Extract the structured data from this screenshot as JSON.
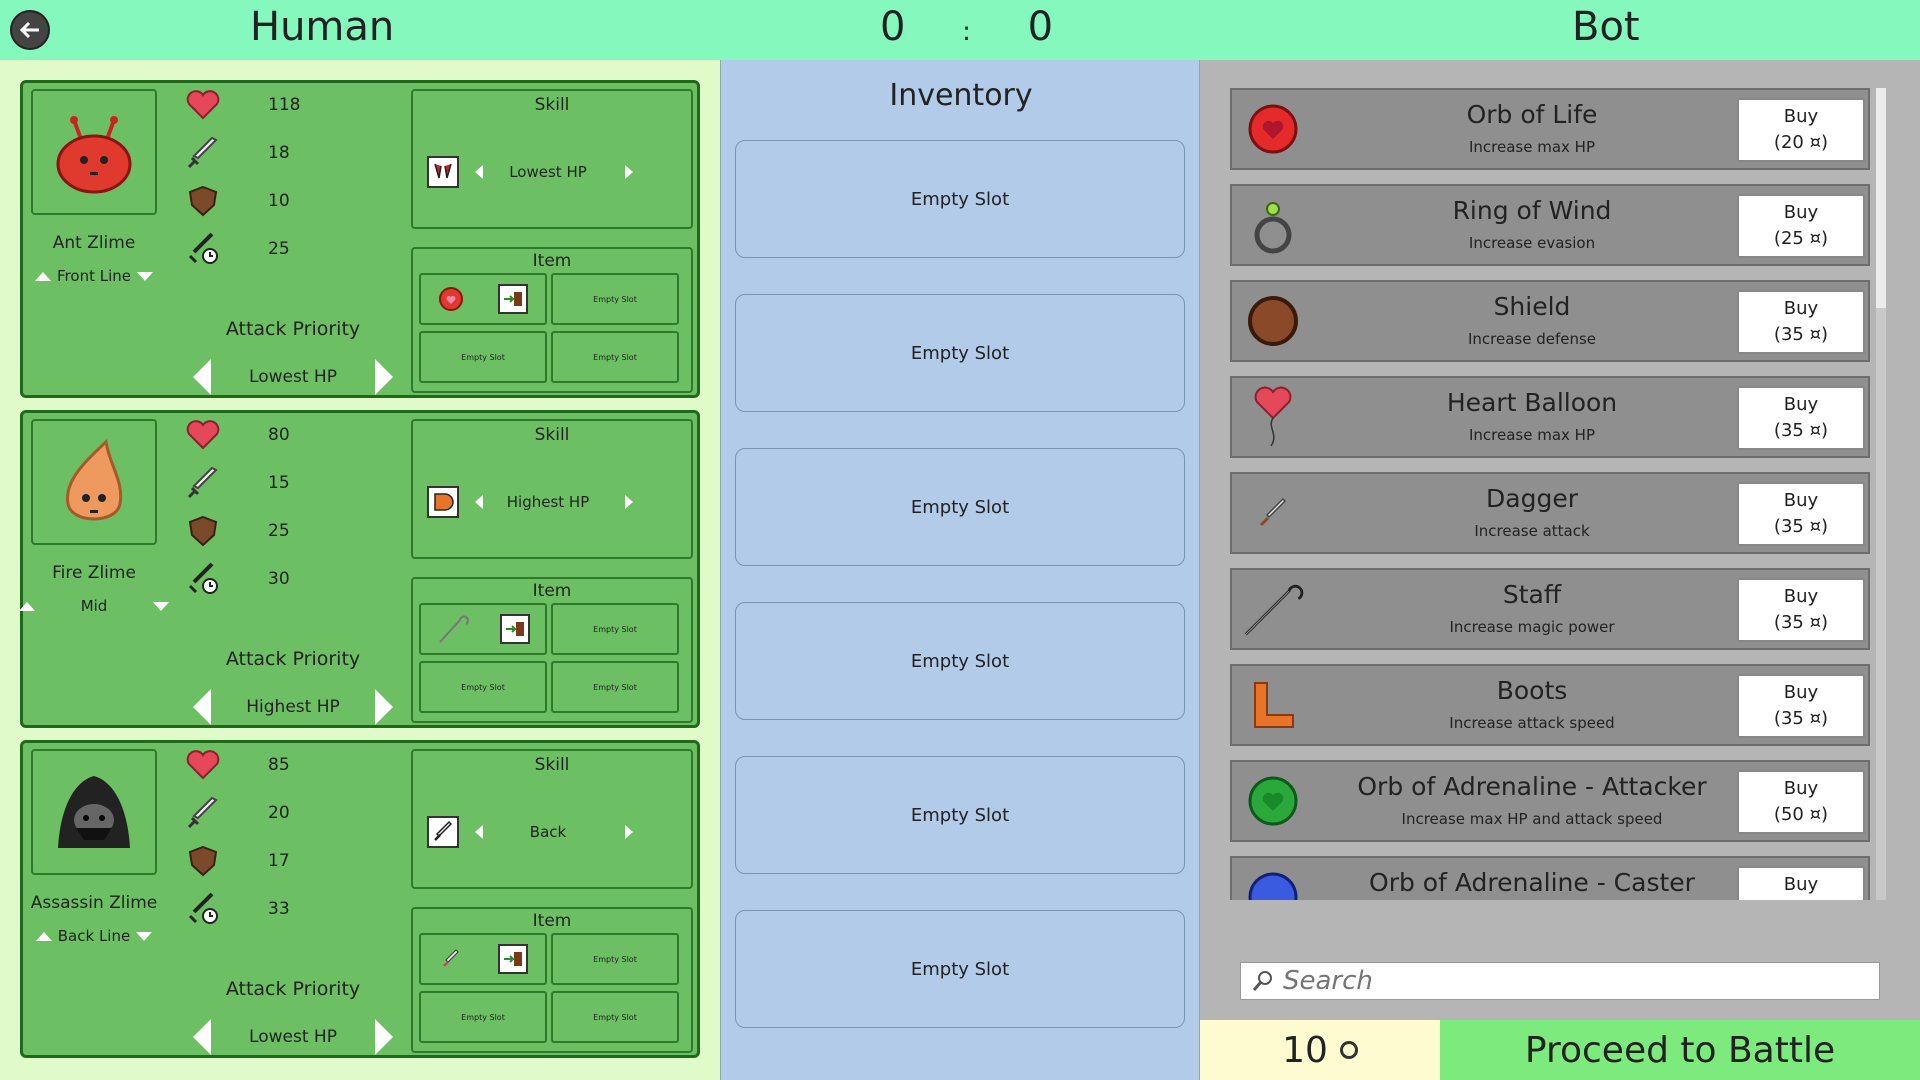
{
  "header": {
    "human_label": "Human",
    "score_left": "0",
    "score_sep": ":",
    "score_right": "0",
    "bot_label": "Bot"
  },
  "labels": {
    "skill": "Skill",
    "item": "Item",
    "attack_priority": "Attack Priority",
    "empty_slot_small": "Empty Slot"
  },
  "units": [
    {
      "name": "Ant Zlime",
      "line": "Front Line",
      "hp": "118",
      "attack": "18",
      "defense": "10",
      "speed": "25",
      "skill": "Lowest HP",
      "priority": "Lowest HP"
    },
    {
      "name": "Fire Zlime",
      "line": "Mid",
      "hp": "80",
      "attack": "15",
      "defense": "25",
      "speed": "30",
      "skill": "Highest HP",
      "priority": "Highest HP"
    },
    {
      "name": "Assassin Zlime",
      "line": "Back Line",
      "hp": "85",
      "attack": "20",
      "defense": "17",
      "speed": "33",
      "skill": "Back",
      "priority": "Lowest HP"
    }
  ],
  "inventory": {
    "title": "Inventory",
    "slots": [
      "Empty Slot",
      "Empty Slot",
      "Empty Slot",
      "Empty Slot",
      "Empty Slot",
      "Empty Slot"
    ]
  },
  "shop": {
    "items": [
      {
        "name": "Orb of Life",
        "desc": "Increase max HP",
        "buy": "Buy",
        "price": "(20",
        "icon": "red-orb-icon"
      },
      {
        "name": "Ring of Wind",
        "desc": "Increase evasion",
        "buy": "Buy",
        "price": "(25",
        "icon": "ring-icon"
      },
      {
        "name": "Shield",
        "desc": "Increase defense",
        "buy": "Buy",
        "price": "(35",
        "icon": "shield-item-icon"
      },
      {
        "name": "Heart Balloon",
        "desc": "Increase max HP",
        "buy": "Buy",
        "price": "(35",
        "icon": "heart-balloon-icon"
      },
      {
        "name": "Dagger",
        "desc": "Increase attack",
        "buy": "Buy",
        "price": "(35",
        "icon": "dagger-icon"
      },
      {
        "name": "Staff",
        "desc": "Increase magic power",
        "buy": "Buy",
        "price": "(35",
        "icon": "staff-icon"
      },
      {
        "name": "Boots",
        "desc": "Increase attack speed",
        "buy": "Buy",
        "price": "(35",
        "icon": "boots-icon"
      },
      {
        "name": "Orb of Adrenaline - Attacker",
        "desc": "Increase max HP and attack speed",
        "buy": "Buy",
        "price": "(50",
        "icon": "green-orb-icon"
      },
      {
        "name": "Orb of Adrenaline - Caster",
        "desc": "",
        "buy": "Buy",
        "price": "",
        "icon": "blue-orb-icon"
      }
    ],
    "search_placeholder": "Search"
  },
  "footer": {
    "gold": "10",
    "proceed": "Proceed to Battle"
  }
}
